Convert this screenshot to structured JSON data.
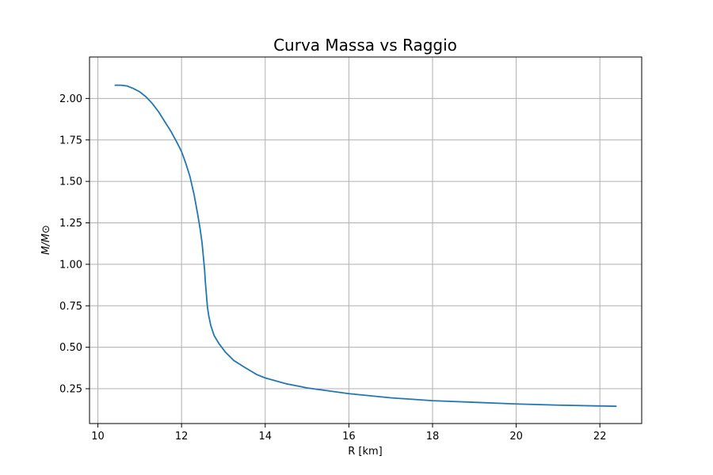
{
  "chart_data": {
    "type": "line",
    "title": "Curva Massa vs Raggio",
    "xlabel": "R [km]",
    "ylabel": "M/M⊙",
    "xlim": [
      9.8,
      23.0
    ],
    "ylim": [
      0.04,
      2.25
    ],
    "xticks": [
      10,
      12,
      14,
      16,
      18,
      20,
      22
    ],
    "yticks": [
      0.25,
      0.5,
      0.75,
      1.0,
      1.25,
      1.5,
      1.75,
      2.0
    ],
    "ytick_labels": [
      "0.25",
      "0.50",
      "0.75",
      "1.00",
      "1.25",
      "1.50",
      "1.75",
      "2.00"
    ],
    "grid": true,
    "color": "#1f77b4",
    "series": [
      {
        "x": [
          10.4,
          10.55,
          10.7,
          10.85,
          11.0,
          11.15,
          11.3,
          11.45,
          11.6,
          11.75,
          11.9,
          12.0,
          12.1,
          12.2,
          12.3,
          12.38,
          12.44,
          12.49,
          12.52,
          12.55,
          12.57,
          12.6,
          12.62,
          12.65,
          12.7,
          12.78,
          12.9,
          13.05,
          13.25,
          13.5,
          13.8,
          14.0,
          14.5,
          15.0,
          16.0,
          17.0,
          18.0,
          19.0,
          20.0,
          21.0,
          22.0,
          22.4
        ],
        "y": [
          2.08,
          2.08,
          2.075,
          2.06,
          2.04,
          2.01,
          1.97,
          1.92,
          1.86,
          1.8,
          1.73,
          1.68,
          1.61,
          1.53,
          1.42,
          1.31,
          1.22,
          1.13,
          1.05,
          0.97,
          0.89,
          0.8,
          0.74,
          0.69,
          0.63,
          0.57,
          0.52,
          0.47,
          0.42,
          0.38,
          0.335,
          0.315,
          0.28,
          0.255,
          0.22,
          0.195,
          0.178,
          0.168,
          0.158,
          0.151,
          0.146,
          0.144
        ]
      }
    ]
  }
}
